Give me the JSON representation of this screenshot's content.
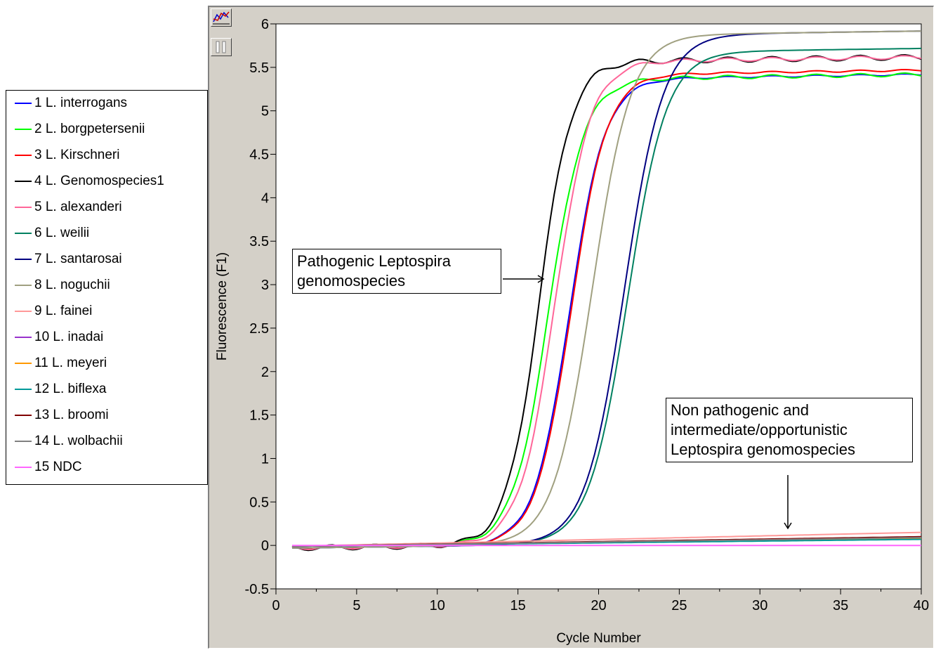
{
  "chart_data": {
    "type": "line",
    "xlabel": "Cycle Number",
    "ylabel": "Fluorescence (F1)",
    "xlim": [
      0,
      40
    ],
    "ylim": [
      -0.5,
      6
    ],
    "x_ticks": [
      "0",
      "5",
      "10",
      "15",
      "20",
      "25",
      "30",
      "35",
      "40"
    ],
    "y_ticks": [
      "-0.5",
      "0",
      "0.5",
      "1",
      "1.5",
      "2",
      "2.5",
      "3",
      "3.5",
      "4",
      "4.5",
      "5",
      "5.5",
      "6"
    ],
    "grid": false,
    "legend_position": "left",
    "annotations": [
      {
        "lines": [
          "Pathogenic Leptospira",
          "genomospecies"
        ]
      },
      {
        "lines": [
          "Non pathogenic and",
          "intermediate/opportunistic",
          "Leptospira genomospecies"
        ]
      }
    ],
    "series": [
      {
        "name": "1 L. interrogans",
        "color": "#0000ff",
        "type": "sig",
        "params": [
          5.35,
          18.2,
          1.1,
          0.01
        ]
      },
      {
        "name": "2 L. borgpetersenii",
        "color": "#00ff00",
        "type": "sig",
        "params": [
          5.35,
          16.9,
          1.1,
          0.02
        ]
      },
      {
        "name": "3 L. Kirschneri",
        "color": "#ff0000",
        "type": "sig",
        "params": [
          5.4,
          18.3,
          1.1,
          0.01
        ]
      },
      {
        "name": "4 L. Genomospecies1",
        "color": "#000000",
        "type": "sig",
        "params": [
          5.55,
          16.3,
          1.0,
          0.03
        ]
      },
      {
        "name": "5 L. alexanderi",
        "color": "#ff6699",
        "type": "sig",
        "params": [
          5.55,
          17.3,
          1.1,
          0.02
        ]
      },
      {
        "name": "6 L. weilii",
        "color": "#008060",
        "type": "sig",
        "params": [
          5.65,
          21.8,
          1.2,
          0.0
        ]
      },
      {
        "name": "7 L. santarosai",
        "color": "#000080",
        "type": "sig",
        "params": [
          5.85,
          21.6,
          1.2,
          0.0
        ]
      },
      {
        "name": "8 L. noguchii",
        "color": "#a0a080",
        "type": "sig",
        "params": [
          5.85,
          19.6,
          1.2,
          0.0
        ]
      },
      {
        "name": "9 L. fainei",
        "color": "#ff9999",
        "type": "flat",
        "params": [
          0.15
        ]
      },
      {
        "name": "10 L. inadai",
        "color": "#9933cc",
        "type": "flat",
        "params": [
          0.09
        ]
      },
      {
        "name": "11 L. meyeri",
        "color": "#ff9900",
        "type": "flat",
        "params": [
          0.08
        ]
      },
      {
        "name": "12 L. biflexa",
        "color": "#009999",
        "type": "flat",
        "params": [
          0.07
        ]
      },
      {
        "name": "13 L. broomi",
        "color": "#800000",
        "type": "flat",
        "params": [
          0.1
        ]
      },
      {
        "name": "14 L. wolbachii",
        "color": "#808080",
        "type": "flat",
        "params": [
          0.09
        ]
      },
      {
        "name": "15 NDC",
        "color": "#ff66ff",
        "type": "ndc",
        "params": [
          0.0
        ]
      }
    ]
  }
}
